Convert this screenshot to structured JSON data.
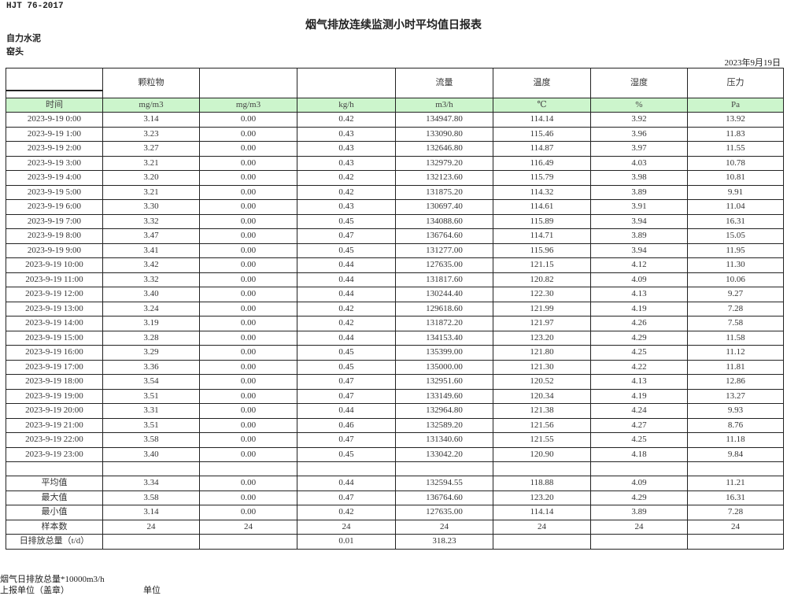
{
  "header": {
    "standard": "HJT  76-2017",
    "title": "烟气排放连续监测小时平均值日报表",
    "company": "自力水泥",
    "site": "窑头",
    "date": "2023年9月19日"
  },
  "table": {
    "column_headers": [
      "",
      "颗粒物",
      "",
      "",
      "流量",
      "温度",
      "湿度",
      "压力"
    ],
    "units": [
      "时间",
      "mg/m3",
      "mg/m3",
      "kg/h",
      "m3/h",
      "℃",
      "%",
      "Pa"
    ],
    "unit_row_color": "#ccf5cc",
    "rows": [
      [
        "2023-9-19 0:00",
        "3.14",
        "0.00",
        "0.42",
        "134947.80",
        "114.14",
        "3.92",
        "13.92"
      ],
      [
        "2023-9-19 1:00",
        "3.23",
        "0.00",
        "0.43",
        "133090.80",
        "115.46",
        "3.96",
        "11.83"
      ],
      [
        "2023-9-19 2:00",
        "3.27",
        "0.00",
        "0.43",
        "132646.80",
        "114.87",
        "3.97",
        "11.55"
      ],
      [
        "2023-9-19 3:00",
        "3.21",
        "0.00",
        "0.43",
        "132979.20",
        "116.49",
        "4.03",
        "10.78"
      ],
      [
        "2023-9-19 4:00",
        "3.20",
        "0.00",
        "0.42",
        "132123.60",
        "115.79",
        "3.98",
        "10.81"
      ],
      [
        "2023-9-19 5:00",
        "3.21",
        "0.00",
        "0.42",
        "131875.20",
        "114.32",
        "3.89",
        "9.91"
      ],
      [
        "2023-9-19 6:00",
        "3.30",
        "0.00",
        "0.43",
        "130697.40",
        "114.61",
        "3.91",
        "11.04"
      ],
      [
        "2023-9-19 7:00",
        "3.32",
        "0.00",
        "0.45",
        "134088.60",
        "115.89",
        "3.94",
        "16.31"
      ],
      [
        "2023-9-19 8:00",
        "3.47",
        "0.00",
        "0.47",
        "136764.60",
        "114.71",
        "3.89",
        "15.05"
      ],
      [
        "2023-9-19 9:00",
        "3.41",
        "0.00",
        "0.45",
        "131277.00",
        "115.96",
        "3.94",
        "11.95"
      ],
      [
        "2023-9-19 10:00",
        "3.42",
        "0.00",
        "0.44",
        "127635.00",
        "121.15",
        "4.12",
        "11.30"
      ],
      [
        "2023-9-19 11:00",
        "3.32",
        "0.00",
        "0.44",
        "131817.60",
        "120.82",
        "4.09",
        "10.06"
      ],
      [
        "2023-9-19 12:00",
        "3.40",
        "0.00",
        "0.44",
        "130244.40",
        "122.30",
        "4.13",
        "9.27"
      ],
      [
        "2023-9-19 13:00",
        "3.24",
        "0.00",
        "0.42",
        "129618.60",
        "121.99",
        "4.19",
        "7.28"
      ],
      [
        "2023-9-19 14:00",
        "3.19",
        "0.00",
        "0.42",
        "131872.20",
        "121.97",
        "4.26",
        "7.58"
      ],
      [
        "2023-9-19 15:00",
        "3.28",
        "0.00",
        "0.44",
        "134153.40",
        "123.20",
        "4.29",
        "11.58"
      ],
      [
        "2023-9-19 16:00",
        "3.29",
        "0.00",
        "0.45",
        "135399.00",
        "121.80",
        "4.25",
        "11.12"
      ],
      [
        "2023-9-19 17:00",
        "3.36",
        "0.00",
        "0.45",
        "135000.00",
        "121.30",
        "4.22",
        "11.81"
      ],
      [
        "2023-9-19 18:00",
        "3.54",
        "0.00",
        "0.47",
        "132951.60",
        "120.52",
        "4.13",
        "12.86"
      ],
      [
        "2023-9-19 19:00",
        "3.51",
        "0.00",
        "0.47",
        "133149.60",
        "120.34",
        "4.19",
        "13.27"
      ],
      [
        "2023-9-19 20:00",
        "3.31",
        "0.00",
        "0.44",
        "132964.80",
        "121.38",
        "4.24",
        "9.93"
      ],
      [
        "2023-9-19 21:00",
        "3.51",
        "0.00",
        "0.46",
        "132589.20",
        "121.56",
        "4.27",
        "8.76"
      ],
      [
        "2023-9-19 22:00",
        "3.58",
        "0.00",
        "0.47",
        "131340.60",
        "121.55",
        "4.25",
        "11.18"
      ],
      [
        "2023-9-19 23:00",
        "3.40",
        "0.00",
        "0.45",
        "133042.20",
        "120.90",
        "4.18",
        "9.84"
      ]
    ],
    "summary": [
      [
        "平均值",
        "3.34",
        "0.00",
        "0.44",
        "132594.55",
        "118.88",
        "4.09",
        "11.21"
      ],
      [
        "最大值",
        "3.58",
        "0.00",
        "0.47",
        "136764.60",
        "123.20",
        "4.29",
        "16.31"
      ],
      [
        "最小值",
        "3.14",
        "0.00",
        "0.42",
        "127635.00",
        "114.14",
        "3.89",
        "7.28"
      ],
      [
        "样本数",
        "24",
        "24",
        "24",
        "24",
        "24",
        "24",
        "24"
      ],
      [
        "日排放总量（t/d）",
        "",
        "",
        "0.01",
        "318.23",
        "",
        "",
        ""
      ]
    ]
  },
  "footer": {
    "note": "烟气日排放总量*10000m3/h",
    "reporter_label": "上报单位（盖章）",
    "unit_label": "单位"
  }
}
